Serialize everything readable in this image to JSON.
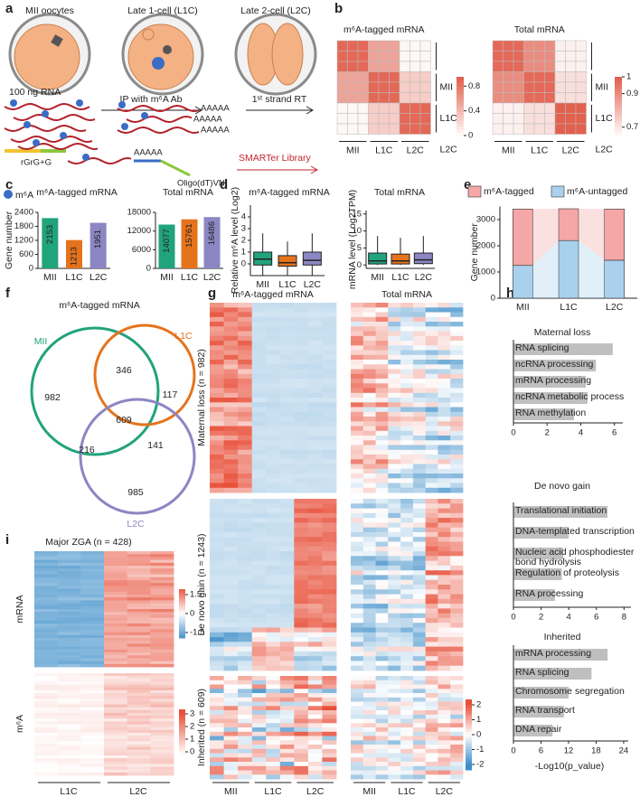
{
  "panel_labels": [
    "a",
    "b",
    "c",
    "d",
    "e",
    "f",
    "g",
    "h",
    "i"
  ],
  "diagram": {
    "stages": [
      "MII oocytes",
      "Late 1-cell (L1C)",
      "Late 2-cell (L2C)"
    ],
    "input": "100 ng RNA",
    "step1": "IP with m⁶A Ab",
    "step2": "1ˢᵗ strand RT",
    "polyA": "AAAAA",
    "adapter": "rGrG+G",
    "oligo": "Oligo(dT)VN",
    "library": "SMARTer Library",
    "legend": "m⁶A"
  },
  "chart_data": [
    {
      "type": "bar",
      "title": "m⁶A-tagged mRNA",
      "ylabel": "Gene number",
      "categories": [
        "MII",
        "L1C",
        "L2C"
      ],
      "values": [
        2153,
        1213,
        1951
      ],
      "colors": [
        "#21a37c",
        "#e5731c",
        "#8c86c3"
      ],
      "ylim": [
        0,
        2400
      ],
      "yticks": [
        0,
        600,
        1200,
        1800,
        2400
      ]
    },
    {
      "type": "bar",
      "title": "Total mRNA",
      "categories": [
        "MII",
        "L1C",
        "L2C"
      ],
      "values": [
        14077,
        15761,
        16486
      ],
      "colors": [
        "#21a37c",
        "#e5731c",
        "#8c86c3"
      ],
      "ylim": [
        0,
        18000
      ],
      "yticks": [
        0,
        6000,
        12000,
        18000
      ]
    },
    {
      "type": "box",
      "title": "m⁶A-tagged mRNA",
      "ylabel": "Relative m⁶A level (Log2)",
      "categories": [
        "MII",
        "L1C",
        "L2C"
      ],
      "colors": [
        "#21a37c",
        "#e5731c",
        "#8c86c3"
      ],
      "boxes": [
        {
          "whislo": -1,
          "q1": -0.1,
          "med": 0.4,
          "q3": 1.0,
          "whishi": 2.6
        },
        {
          "whislo": -1,
          "q1": -0.2,
          "med": 0.1,
          "q3": 0.7,
          "whishi": 1.9
        },
        {
          "whislo": -1,
          "q1": -0.1,
          "med": 0.3,
          "q3": 1.0,
          "whishi": 2.6
        }
      ],
      "ylim": [
        -1,
        5
      ],
      "yticks": [
        0,
        1,
        2,
        3,
        4
      ]
    },
    {
      "type": "box",
      "title": "Total mRNA",
      "ylabel": "mRNA level (Log2TPM)",
      "categories": [
        "MII",
        "L1C",
        "L2C"
      ],
      "colors": [
        "#21a37c",
        "#e5731c",
        "#8c86c3"
      ],
      "boxes": [
        {
          "whislo": 0,
          "q1": 0.3,
          "med": 1.2,
          "q3": 3.5,
          "whishi": 8.5
        },
        {
          "whislo": 0,
          "q1": 0.3,
          "med": 1.2,
          "q3": 3.2,
          "whishi": 8
        },
        {
          "whislo": 0,
          "q1": 0.4,
          "med": 1.5,
          "q3": 3.5,
          "whishi": 8.5
        }
      ],
      "ylim": [
        -1,
        16
      ],
      "yticks": [
        0,
        5,
        10,
        15
      ]
    },
    {
      "type": "stacked_bar",
      "ylabel": "Gene number",
      "categories": [
        "MII",
        "L1C",
        "L2C"
      ],
      "series": [
        {
          "name": "m⁶A-tagged",
          "color": "#f4a7a6",
          "values": [
            2153,
            1213,
            1951
          ]
        },
        {
          "name": "m⁶A-untagged",
          "color": "#a9d1ed",
          "values": [
            1250,
            2200,
            1450
          ]
        }
      ],
      "ylim": [
        0,
        3500
      ],
      "yticks": [
        0,
        1000,
        2000,
        3000
      ]
    },
    {
      "type": "hbar",
      "title": "Maternal loss",
      "categories": [
        "RNA splicing",
        "ncRNA processing",
        "mRNA processing",
        "ncRNA metabolic process",
        "RNA methylation"
      ],
      "values": [
        5.9,
        4.9,
        4.3,
        4.4,
        3.6
      ],
      "color": "#bfbfbf",
      "xlim": [
        0,
        6.5
      ],
      "xticks": [
        0,
        2,
        4,
        6
      ]
    },
    {
      "type": "hbar",
      "title": "De novo gain",
      "categories": [
        "Translational initiation",
        "DNA-templated transcription",
        "Nucleic acid phosphodiester bond hydrolysis",
        "Regulation of proteolysis",
        "RNA processing"
      ],
      "values": [
        6.8,
        4.0,
        3.6,
        3.5,
        3.0
      ],
      "color": "#bfbfbf",
      "xlim": [
        0,
        8.5
      ],
      "xticks": [
        0,
        2,
        4,
        6,
        8
      ]
    },
    {
      "type": "hbar",
      "title": "Inherited",
      "xlabel": "-Log10(p_value)",
      "categories": [
        "mRNA processing",
        "RNA splicing",
        "Chromosome segregation",
        "RNA transport",
        "DNA repair"
      ],
      "values": [
        20.5,
        17,
        12,
        11,
        8.5
      ],
      "color": "#bfbfbf",
      "xlim": [
        0,
        25
      ],
      "xticks": [
        0,
        6,
        12,
        18,
        24
      ]
    },
    {
      "type": "heatmap",
      "title": "m⁶A-tagged mRNA",
      "categories": [
        "MII",
        "L1C",
        "L2C"
      ],
      "z": [
        [
          0.9,
          0.55,
          0.05
        ],
        [
          0.55,
          0.9,
          0.3
        ],
        [
          0.05,
          0.3,
          0.9
        ]
      ],
      "clim": [
        0,
        0.95
      ],
      "cticks": [
        0,
        0.4,
        0.8
      ]
    },
    {
      "type": "heatmap",
      "title": "Total mRNA",
      "categories": [
        "MII",
        "L1C",
        "L2C"
      ],
      "z": [
        [
          0.98,
          0.9,
          0.68
        ],
        [
          0.9,
          0.98,
          0.72
        ],
        [
          0.68,
          0.72,
          1
        ]
      ],
      "clim": [
        0.65,
        1
      ],
      "cticks": [
        0.7,
        0.9,
        1
      ]
    }
  ],
  "venn": {
    "title": "m⁶A-tagged mRNA",
    "sets": [
      "MII",
      "L1C",
      "L2C"
    ],
    "counts": [
      982,
      346,
      117,
      609,
      216,
      141,
      985
    ]
  },
  "heatmap_g": {
    "column_titles": [
      "m⁶A-tagged mRNA",
      "Total mRNA"
    ],
    "row_groups": [
      "Maternal loss (n = 982)",
      "De novo gain (n = 1243)",
      "Inherited (n = 609)"
    ],
    "x_groups": [
      "MII",
      "L1C",
      "L2C"
    ],
    "colorbar_ticks": [
      2,
      1,
      0,
      -1,
      -2
    ]
  },
  "heatmap_i": {
    "title": "Major ZGA (n = 428)",
    "rows": [
      "mRNA",
      "m⁶A"
    ],
    "x_groups": [
      "L1C",
      "L2C"
    ],
    "colorbar1_ticks": [
      1.5,
      0,
      -1.5
    ],
    "colorbar2_ticks": [
      3,
      2,
      1,
      0
    ]
  }
}
